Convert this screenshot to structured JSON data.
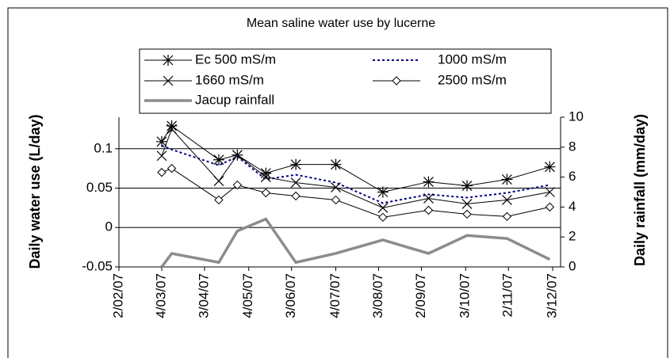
{
  "chart_data": {
    "type": "line",
    "title": "Mean saline water use by lucerne",
    "y_label": "Daily water use (L/day)",
    "y2_label": "Daily rainfall (mm/day)",
    "x": [
      "4/03/07",
      "11/03/07",
      "13/04/07",
      "26/04/07",
      "16/05/07",
      "6/06/07",
      "4/07/07",
      "6/08/07",
      "7/09/07",
      "4/10/07",
      "1/11/07",
      "1/12/07"
    ],
    "xlim": [
      "2/02/07",
      "3/12/07"
    ],
    "xticks": [
      "2/02/07",
      "4/03/07",
      "3/04/07",
      "4/05/07",
      "3/06/07",
      "4/07/07",
      "3/08/07",
      "2/09/07",
      "3/10/07",
      "2/11/07",
      "3/12/07"
    ],
    "ylim": [
      -0.05,
      0.14
    ],
    "yticks": [
      -0.05,
      0,
      0.05,
      0.1
    ],
    "y2lim": [
      0,
      10
    ],
    "y2ticks": [
      0,
      2,
      4,
      6,
      8,
      10
    ],
    "grid": true,
    "series": [
      {
        "name": "Ec 500  mS/m",
        "color": "#000000",
        "marker": "asterisk",
        "dash": "solid",
        "values": [
          0.109,
          0.129,
          0.086,
          0.092,
          0.069,
          0.08,
          0.08,
          0.045,
          0.058,
          0.053,
          0.061,
          0.077
        ]
      },
      {
        "name": "1000 mS/m",
        "color": "#000080",
        "marker": "none",
        "dash": "dotted",
        "values": [
          0.104,
          0.099,
          0.079,
          0.09,
          0.061,
          0.067,
          0.057,
          0.031,
          0.042,
          0.038,
          0.044,
          0.054
        ]
      },
      {
        "name": "1660 mS/m",
        "color": "#000000",
        "marker": "cross",
        "dash": "solid",
        "values": [
          0.091,
          0.125,
          0.059,
          0.092,
          0.064,
          0.057,
          0.051,
          0.025,
          0.037,
          0.03,
          0.035,
          0.045
        ]
      },
      {
        "name": "2500 mS/m",
        "color": "#000000",
        "marker": "diamond",
        "dash": "solid",
        "values": [
          0.07,
          0.075,
          0.035,
          0.054,
          0.044,
          0.04,
          0.035,
          0.013,
          0.022,
          0.017,
          0.014,
          0.026
        ]
      },
      {
        "name": "Jacup rainfall",
        "color": "#8c8c8c",
        "marker": "none",
        "dash": "thick",
        "axis": "y2",
        "values": [
          0,
          0.9,
          0.3,
          2.4,
          3.2,
          0.3,
          0.9,
          1.8,
          0.9,
          2.1,
          1.9,
          0.5
        ]
      }
    ]
  }
}
